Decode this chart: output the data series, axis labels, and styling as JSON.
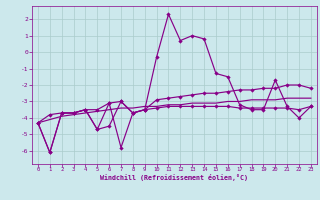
{
  "xlabel": "Windchill (Refroidissement éolien,°C)",
  "background_color": "#cce8ec",
  "grid_color": "#aacccc",
  "line_color": "#880088",
  "x": [
    0,
    1,
    2,
    3,
    4,
    5,
    6,
    7,
    8,
    9,
    10,
    11,
    12,
    13,
    14,
    15,
    16,
    17,
    18,
    19,
    20,
    21,
    22,
    23
  ],
  "line1": [
    -4.3,
    -6.1,
    -3.7,
    -3.7,
    -3.5,
    -4.7,
    -3.1,
    -5.8,
    -3.7,
    -3.5,
    -0.3,
    2.3,
    0.7,
    1.0,
    0.8,
    -1.3,
    -1.5,
    -3.2,
    -3.5,
    -3.5,
    -1.7,
    -3.3,
    -4.0,
    -3.3
  ],
  "line2": [
    -4.3,
    -6.1,
    -3.7,
    -3.7,
    -3.5,
    -4.7,
    -4.5,
    -3.0,
    -3.7,
    -3.5,
    -2.9,
    -2.8,
    -2.7,
    -2.6,
    -2.5,
    -2.5,
    -2.4,
    -2.3,
    -2.3,
    -2.2,
    -2.2,
    -2.0,
    -2.0,
    -2.2
  ],
  "line3": [
    -4.3,
    -3.8,
    -3.7,
    -3.7,
    -3.5,
    -3.5,
    -3.1,
    -3.0,
    -3.7,
    -3.5,
    -3.4,
    -3.3,
    -3.3,
    -3.3,
    -3.3,
    -3.3,
    -3.3,
    -3.4,
    -3.4,
    -3.4,
    -3.4,
    -3.4,
    -3.5,
    -3.3
  ],
  "line4": [
    -4.3,
    -4.1,
    -3.9,
    -3.8,
    -3.7,
    -3.6,
    -3.5,
    -3.4,
    -3.4,
    -3.3,
    -3.3,
    -3.2,
    -3.2,
    -3.1,
    -3.1,
    -3.1,
    -3.0,
    -3.0,
    -2.9,
    -2.9,
    -2.9,
    -2.8,
    -2.8,
    -2.8
  ],
  "ylim": [
    -6.8,
    2.8
  ],
  "xlim": [
    -0.5,
    23.5
  ],
  "yticks": [
    -6,
    -5,
    -4,
    -3,
    -2,
    -1,
    0,
    1,
    2
  ],
  "xticks": [
    0,
    1,
    2,
    3,
    4,
    5,
    6,
    7,
    8,
    9,
    10,
    11,
    12,
    13,
    14,
    15,
    16,
    17,
    18,
    19,
    20,
    21,
    22,
    23
  ]
}
